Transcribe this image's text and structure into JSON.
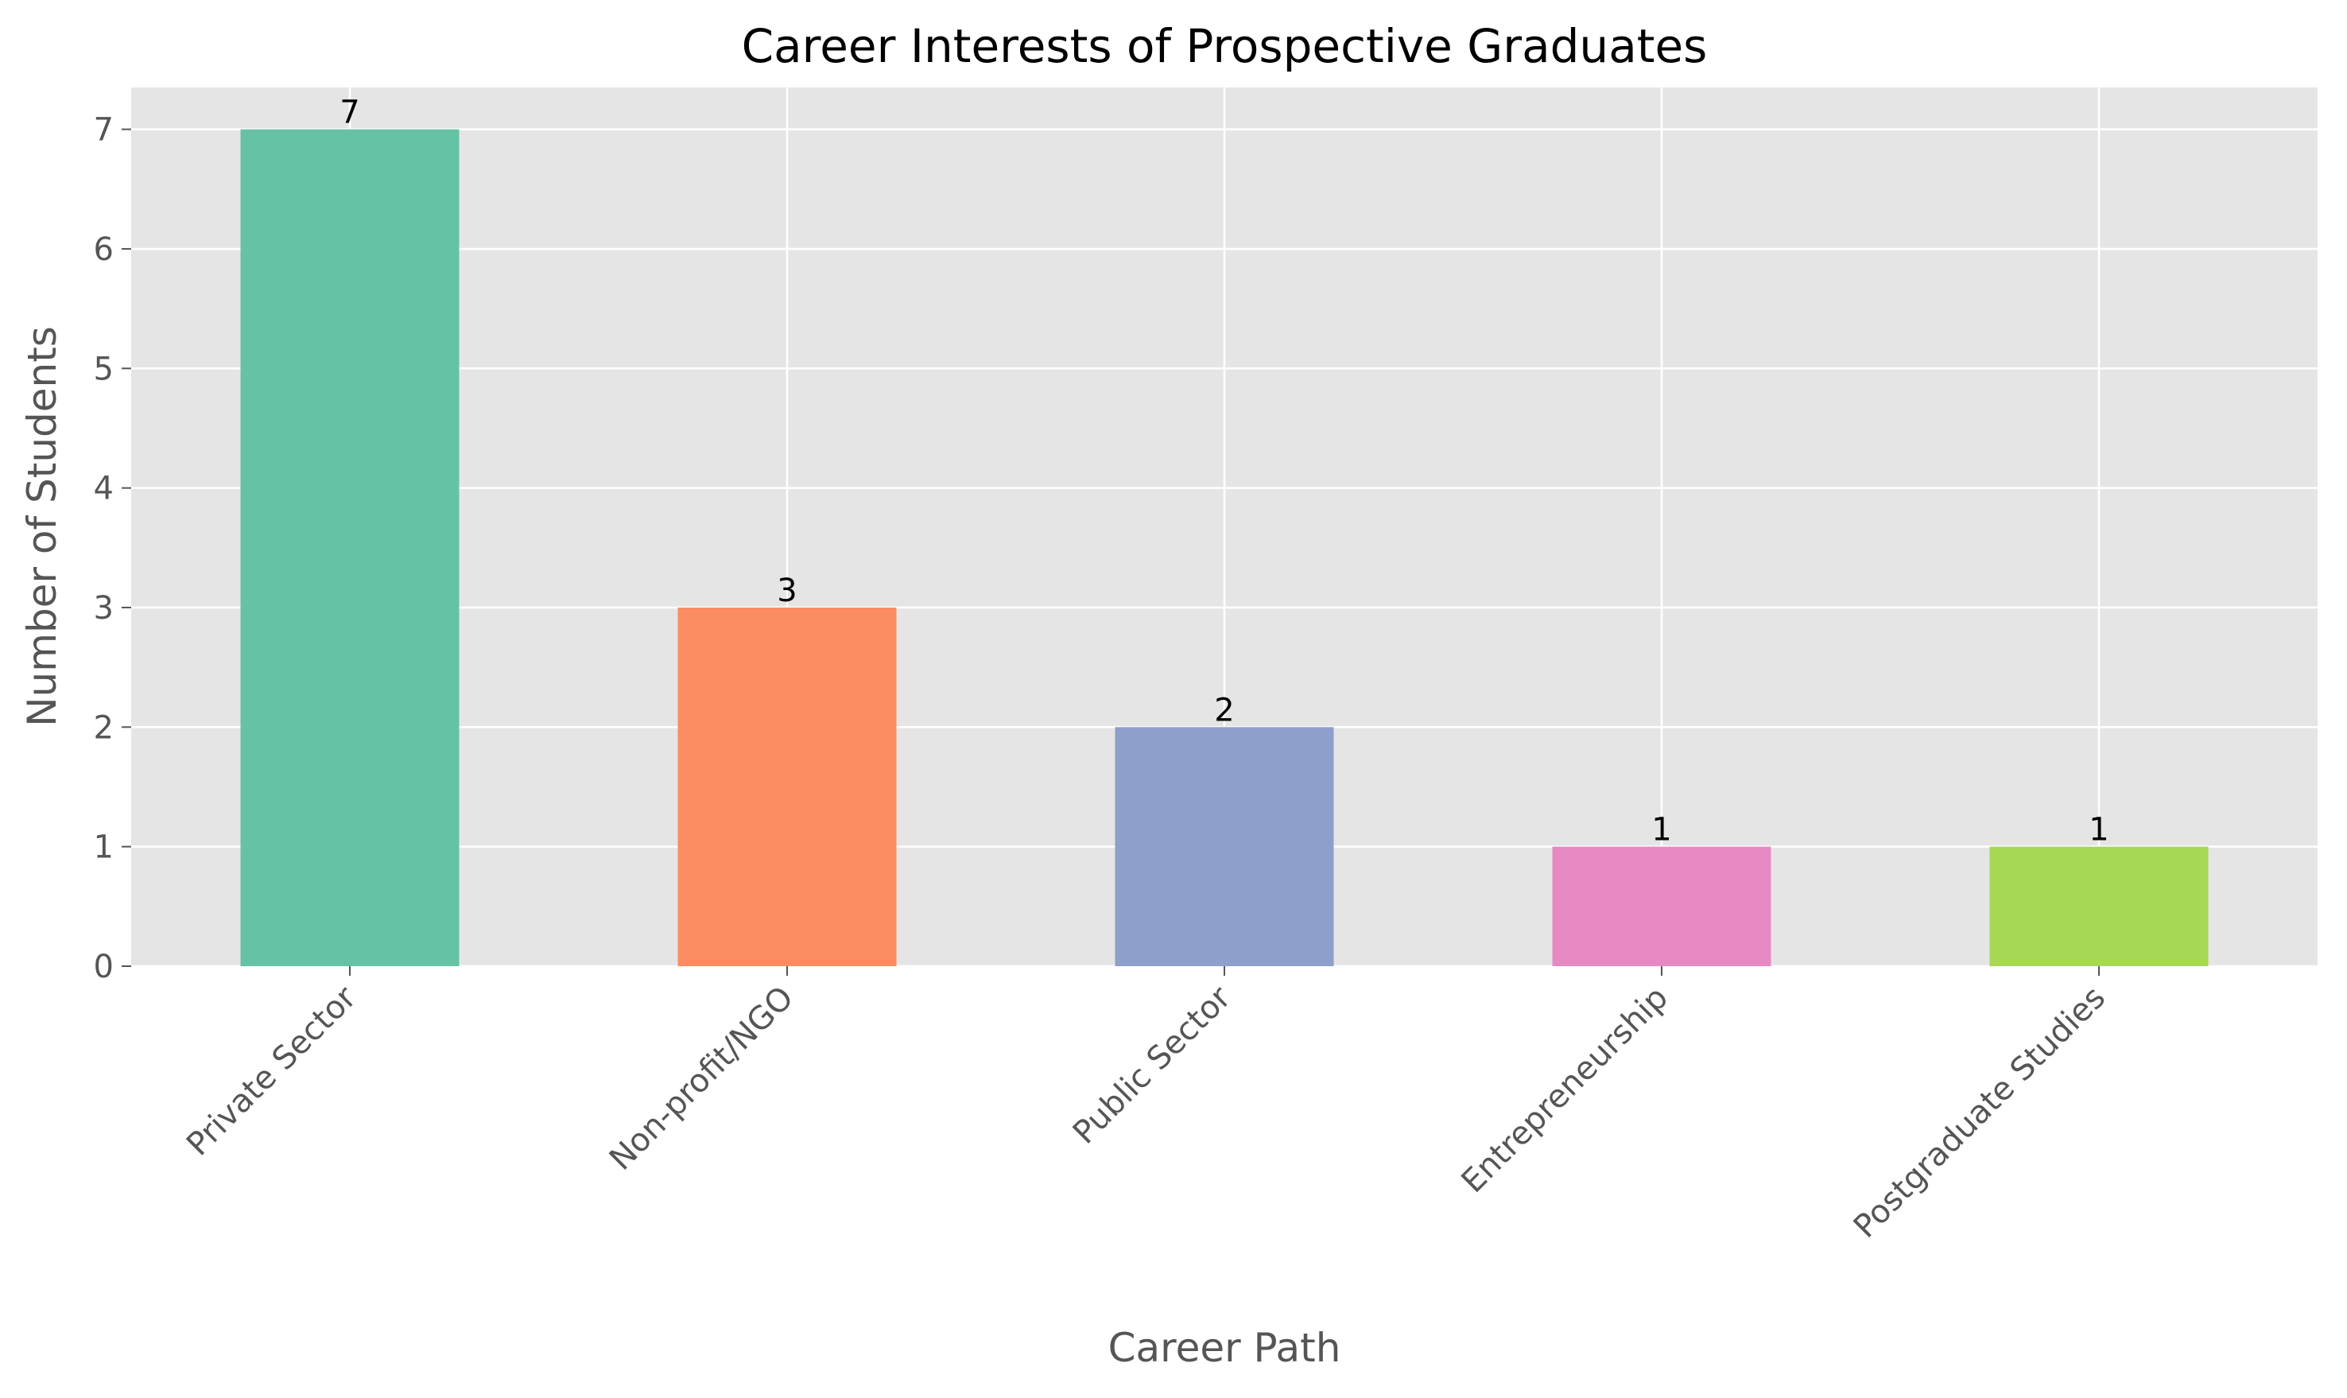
{
  "chart_data": {
    "type": "bar",
    "title": "Career Interests of Prospective Graduates",
    "xlabel": "Career Path",
    "ylabel": "Number of Students",
    "categories": [
      "Private Sector",
      "Non-profit/NGO",
      "Public Sector",
      "Entrepreneurship",
      "Postgraduate Studies"
    ],
    "values": [
      7,
      3,
      2,
      1,
      1
    ],
    "value_labels": [
      "7",
      "3",
      "2",
      "1",
      "1"
    ],
    "colors": [
      "#66c2a5",
      "#fc8d62",
      "#8da0cb",
      "#e78ac3",
      "#a6d854"
    ],
    "ylim": [
      0,
      7.35
    ],
    "yticks": [
      0,
      1,
      2,
      3,
      4,
      5,
      6,
      7
    ],
    "grid": true,
    "background": "#e5e5e5",
    "grid_color": "#ffffff"
  }
}
